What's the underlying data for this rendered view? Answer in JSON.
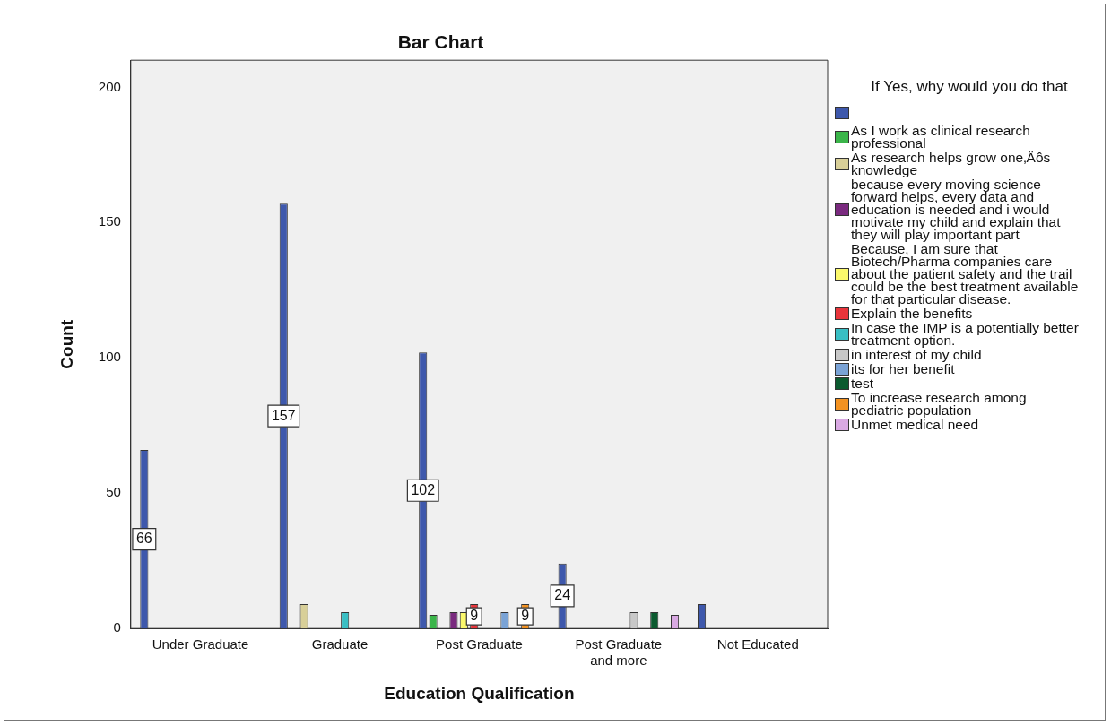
{
  "chart_data": {
    "type": "bar",
    "title": "Bar Chart",
    "xlabel": "Education Qualification",
    "ylabel": "Count",
    "legend_title": "If Yes, why would you do that",
    "legend": "right",
    "grid": false,
    "categories": [
      "Under Graduate",
      "Graduate",
      "Post Graduate",
      "Post Graduate and more",
      "Not Educated"
    ],
    "ylim": [
      0,
      210
    ],
    "yticks": [
      0,
      50,
      100,
      150,
      200
    ],
    "series": [
      {
        "color": "#3e58ac",
        "values": [
          66,
          157,
          102,
          24,
          9
        ],
        "value_labels": [
          "66",
          "157",
          "102",
          "24",
          null
        ]
      },
      {
        "name": "As I work as clinical research  professional",
        "color": "#3bb54a",
        "values": [
          null,
          null,
          5,
          null,
          null
        ]
      },
      {
        "name": "As research helps grow one‚Äôs knowledge",
        "color": "#d8cf98",
        "values": [
          null,
          9,
          null,
          null,
          null
        ]
      },
      {
        "name": "because every moving science forward helps, every data and education is needed and i would motivate my child and explain that they will play important part",
        "color": "#7a2a7f",
        "values": [
          null,
          null,
          6,
          null,
          null
        ]
      },
      {
        "name": "Because, I am sure that Biotech/Pharma companies care about the patient safety and the trail could be the best treatment available for that particular disease.",
        "color": "#fbf86b",
        "values": [
          null,
          null,
          6,
          null,
          null
        ]
      },
      {
        "name": "Explain the benefits",
        "color": "#e8353b",
        "values": [
          null,
          null,
          9,
          null,
          null
        ],
        "value_labels": [
          null,
          null,
          "9",
          null,
          null
        ]
      },
      {
        "name": "In case the IMP is a potentially better treatment option.",
        "color": "#39bfc4",
        "values": [
          null,
          6,
          null,
          null,
          null
        ]
      },
      {
        "name": "in interest of my child",
        "color": "#c8c8c8",
        "values": [
          null,
          null,
          null,
          6,
          null
        ]
      },
      {
        "name": "its for her benefit",
        "color": "#7aa3d6",
        "values": [
          null,
          null,
          6,
          null,
          null
        ]
      },
      {
        "name": "test",
        "color": "#0b5a2f",
        "values": [
          null,
          null,
          null,
          6,
          null
        ]
      },
      {
        "name": "To increase research among pediatric population",
        "color": "#f39221",
        "values": [
          null,
          null,
          9,
          null,
          null
        ],
        "value_labels": [
          null,
          null,
          "9",
          null,
          null
        ]
      },
      {
        "name": "Unmet medical need",
        "color": "#d9a9e3",
        "values": [
          null,
          null,
          null,
          5,
          null
        ]
      }
    ]
  }
}
